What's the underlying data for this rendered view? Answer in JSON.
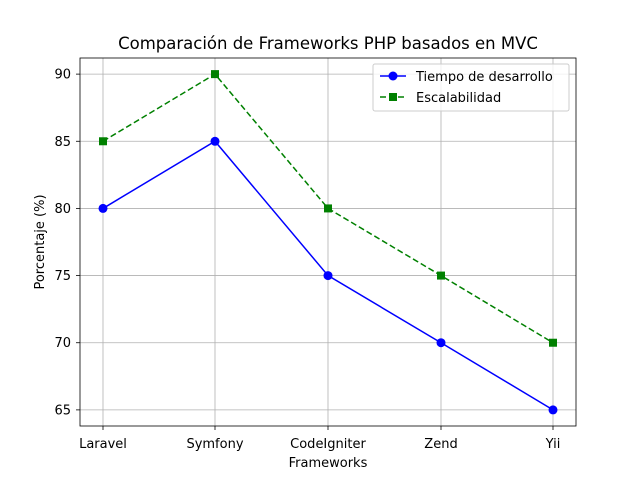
{
  "chart_data": {
    "type": "line",
    "title": "Comparación de Frameworks PHP basados en MVC",
    "xlabel": "Frameworks",
    "ylabel": "Porcentaje (%)",
    "categories": [
      "Laravel",
      "Symfony",
      "CodeIgniter",
      "Zend",
      "Yii"
    ],
    "ylim": [
      63.8,
      91.2
    ],
    "yticks": [
      65,
      70,
      75,
      80,
      85,
      90
    ],
    "grid": true,
    "legend_position": "top-right",
    "series": [
      {
        "name": "Tiempo de desarrollo",
        "values": [
          80,
          85,
          75,
          70,
          65
        ],
        "color": "#0000ff",
        "line_style": "solid",
        "marker": "circle"
      },
      {
        "name": "Escalabilidad",
        "values": [
          85,
          90,
          80,
          75,
          70
        ],
        "color": "#008000",
        "line_style": "dashed",
        "marker": "square"
      }
    ]
  }
}
